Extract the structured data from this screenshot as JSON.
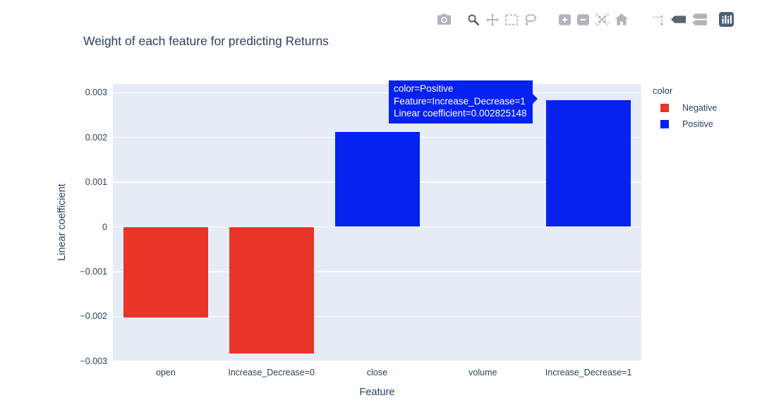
{
  "chart_data": {
    "type": "bar",
    "title": "Weight of each feature for predicting Returns",
    "xlabel": "Feature",
    "ylabel": "Linear coefficient",
    "categories": [
      "open",
      "Increase_Decrease=0",
      "close",
      "volume",
      "Increase_Decrease=1"
    ],
    "values": [
      -0.00203,
      -0.00283,
      0.00212,
      0,
      0.002825148
    ],
    "color_rule": "sign",
    "negative_color": "#e93428",
    "positive_color": "#0522f0",
    "yticks": [
      0.003,
      0.002,
      0.001,
      0,
      -0.001,
      -0.002,
      -0.003
    ],
    "ytick_labels": [
      "0.003",
      "0.002",
      "0.001",
      "0",
      "−0.001",
      "−0.002",
      "−0.003"
    ],
    "ylim": [
      -0.003,
      0.0032
    ],
    "grid": true,
    "plot_bg": "#e5ecf6",
    "grid_color": "#ffffff",
    "text_color": "#2a3f5f",
    "legend": {
      "title": "color",
      "position": "right",
      "entries": [
        {
          "label": "Negative",
          "color": "#e93428"
        },
        {
          "label": "Positive",
          "color": "#0522f0"
        }
      ]
    }
  },
  "tooltip": {
    "lines": [
      "color=Positive",
      "Feature=Increase_Decrease=1",
      "Linear coefficient=0.002825148"
    ],
    "bg": "#0522f0",
    "text_color": "#ffffff"
  },
  "modebar": {
    "icon_color": "#b0b4bb",
    "active_color": "#5d646e",
    "logo_bg": "#4c5e78",
    "groups": [
      [
        {
          "name": "download-plot-button",
          "icon": "camera-icon",
          "active": false
        }
      ],
      [
        {
          "name": "zoom-button",
          "icon": "magnifier-icon",
          "active": true
        },
        {
          "name": "pan-button",
          "icon": "pan-arrows-icon",
          "active": false
        },
        {
          "name": "box-select-button",
          "icon": "box-select-icon",
          "active": false
        },
        {
          "name": "lasso-select-button",
          "icon": "lasso-icon",
          "active": false
        }
      ],
      [
        {
          "name": "zoom-in-button",
          "icon": "zoom-in-icon",
          "active": false
        },
        {
          "name": "zoom-out-button",
          "icon": "zoom-out-icon",
          "active": false
        },
        {
          "name": "autoscale-button",
          "icon": "autoscale-icon",
          "active": false
        },
        {
          "name": "reset-axes-button",
          "icon": "home-icon",
          "active": false
        }
      ],
      [
        {
          "name": "toggle-spikelines-button",
          "icon": "spikelines-icon",
          "active": false
        },
        {
          "name": "hover-closest-button",
          "icon": "hover-closest-icon",
          "active": true
        },
        {
          "name": "hover-compare-button",
          "icon": "hover-compare-icon",
          "active": false
        }
      ],
      [
        {
          "name": "plotly-logo-button",
          "icon": "plotly-logo-icon",
          "active": false
        }
      ]
    ]
  }
}
